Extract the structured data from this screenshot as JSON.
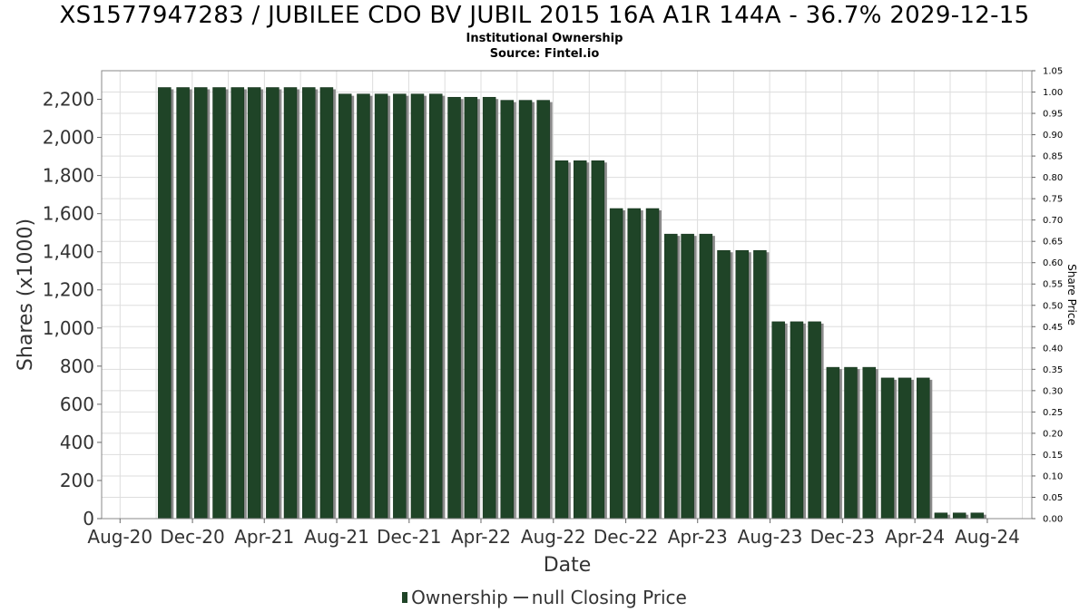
{
  "header": {
    "title": "XS1577947283 / JUBILEE CDO BV JUBIL 2015 16A A1R 144A - 36.7% 2029-12-15",
    "subtitle": "Institutional Ownership",
    "source": "Source: Fintel.io"
  },
  "legend": {
    "ownership_label": "Ownership",
    "price_label": "null Closing Price"
  },
  "colors": {
    "bar": "#1f4427",
    "bar_shadow": "#8a8a8a",
    "grid": "#dddddd",
    "frame": "#888888"
  },
  "chart_data": {
    "type": "bar",
    "title": "XS1577947283 / JUBILEE CDO BV JUBIL 2015 16A A1R 144A - 36.7% 2029-12-15",
    "subtitle": "Institutional Ownership",
    "xlabel": "Date",
    "ylabel": "Shares (x1000)",
    "y2label": "Share Price",
    "xlim": [
      "2020-07-01",
      "2024-10-15"
    ],
    "ylim": [
      0,
      2350
    ],
    "y2lim": [
      0,
      1.05
    ],
    "yticks": [
      0,
      200,
      400,
      600,
      800,
      1000,
      1200,
      1400,
      1600,
      1800,
      2000,
      2200
    ],
    "ytick_labels": [
      "0",
      "200",
      "400",
      "600",
      "800",
      "1,000",
      "1,200",
      "1,400",
      "1,600",
      "1,800",
      "2,000",
      "2,200"
    ],
    "y2ticks": [
      "0.00",
      "0.05",
      "0.10",
      "0.15",
      "0.20",
      "0.25",
      "0.30",
      "0.35",
      "0.40",
      "0.45",
      "0.50",
      "0.55",
      "0.60",
      "0.65",
      "0.70",
      "0.75",
      "0.80",
      "0.85",
      "0.90",
      "0.95",
      "1.00",
      "1.05"
    ],
    "xticks": [
      {
        "date": "2020-08-01",
        "label": "Aug-20"
      },
      {
        "date": "2020-12-01",
        "label": "Dec-20"
      },
      {
        "date": "2021-04-01",
        "label": "Apr-21"
      },
      {
        "date": "2021-08-01",
        "label": "Aug-21"
      },
      {
        "date": "2021-12-01",
        "label": "Dec-21"
      },
      {
        "date": "2022-04-01",
        "label": "Apr-22"
      },
      {
        "date": "2022-08-01",
        "label": "Aug-22"
      },
      {
        "date": "2022-12-01",
        "label": "Dec-22"
      },
      {
        "date": "2023-04-01",
        "label": "Apr-23"
      },
      {
        "date": "2023-08-01",
        "label": "Aug-23"
      },
      {
        "date": "2023-12-01",
        "label": "Dec-23"
      },
      {
        "date": "2024-04-01",
        "label": "Apr-24"
      },
      {
        "date": "2024-08-01",
        "label": "Aug-24"
      }
    ],
    "grid": true,
    "legend_position": "bottom",
    "series": [
      {
        "name": "Ownership",
        "x": [
          "2020-10-15",
          "2020-11-15",
          "2020-12-15",
          "2021-01-15",
          "2021-02-15",
          "2021-03-15",
          "2021-04-15",
          "2021-05-15",
          "2021-06-15",
          "2021-07-15",
          "2021-08-15",
          "2021-09-15",
          "2021-10-15",
          "2021-11-15",
          "2021-12-15",
          "2022-01-15",
          "2022-02-15",
          "2022-03-15",
          "2022-04-15",
          "2022-05-15",
          "2022-06-15",
          "2022-07-15",
          "2022-08-15",
          "2022-09-15",
          "2022-10-15",
          "2022-11-15",
          "2022-12-15",
          "2023-01-15",
          "2023-02-15",
          "2023-03-15",
          "2023-04-15",
          "2023-05-15",
          "2023-06-15",
          "2023-07-15",
          "2023-08-15",
          "2023-09-15",
          "2023-10-15",
          "2023-11-15",
          "2023-12-15",
          "2024-01-15",
          "2024-02-15",
          "2024-03-15",
          "2024-04-15",
          "2024-05-15",
          "2024-06-15",
          "2024-07-15"
        ],
        "values": [
          2262,
          2262,
          2262,
          2262,
          2262,
          2262,
          2262,
          2262,
          2262,
          2262,
          2228,
          2228,
          2228,
          2228,
          2228,
          2228,
          2211,
          2211,
          2211,
          2195,
          2195,
          2195,
          1878,
          1878,
          1878,
          1627,
          1627,
          1627,
          1493,
          1493,
          1493,
          1407,
          1407,
          1407,
          1033,
          1033,
          1033,
          794,
          794,
          794,
          738,
          738,
          738,
          30,
          30,
          30
        ]
      }
    ]
  }
}
